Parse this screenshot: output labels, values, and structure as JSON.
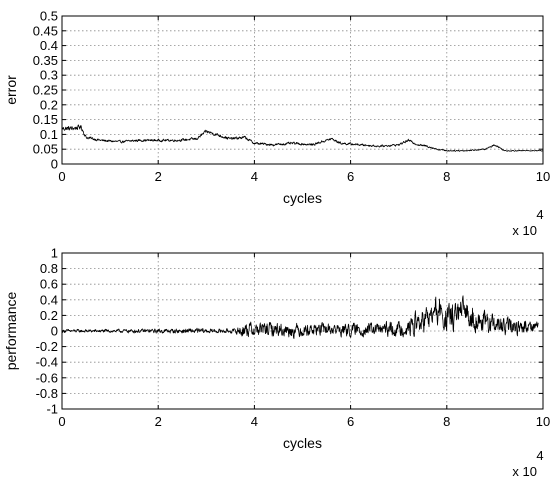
{
  "chart_data": [
    {
      "type": "line",
      "xlabel": "cycles",
      "ylabel": "error",
      "xlim": [
        0,
        100000
      ],
      "ylim": [
        0,
        0.5
      ],
      "x_tick_values": [
        0,
        20000,
        40000,
        60000,
        80000,
        100000
      ],
      "x_tick_labels": [
        "0",
        "2",
        "4",
        "6",
        "8",
        "10"
      ],
      "x_multiplier_base": "x 10",
      "x_multiplier_exponent": "4",
      "y_tick_values": [
        0,
        0.05,
        0.1,
        0.15,
        0.2,
        0.25,
        0.3,
        0.35,
        0.4,
        0.45,
        0.5
      ],
      "y_tick_labels": [
        "0",
        "0.05",
        "0.1",
        "0.15",
        "0.2",
        "0.25",
        "0.3",
        "0.35",
        "0.4",
        "0.45",
        "0.5"
      ],
      "grid": true,
      "colors": {
        "series": "#000000",
        "grid": "#8c8c8c",
        "frame": "#000000"
      },
      "series": [
        {
          "x": [
            0,
            2000,
            4000,
            5000,
            8000,
            12000,
            16000,
            20000,
            24000,
            28000,
            30000,
            32000,
            35000,
            38000,
            40000,
            44000,
            48000,
            52000,
            54000,
            56000,
            58000,
            62000,
            66000,
            70000,
            72000,
            74000,
            76000,
            78000,
            80000,
            84000,
            88000,
            90000,
            92000,
            96000,
            100000
          ],
          "y": [
            0.12,
            0.12,
            0.125,
            0.09,
            0.08,
            0.075,
            0.08,
            0.08,
            0.08,
            0.085,
            0.11,
            0.1,
            0.085,
            0.09,
            0.07,
            0.065,
            0.07,
            0.065,
            0.075,
            0.085,
            0.07,
            0.065,
            0.06,
            0.065,
            0.08,
            0.065,
            0.06,
            0.05,
            0.045,
            0.045,
            0.05,
            0.065,
            0.045,
            0.045,
            0.045
          ],
          "noise": [
            0.012,
            0.012,
            0.012,
            0.008,
            0.006,
            0.006,
            0.006,
            0.006,
            0.006,
            0.007,
            0.008,
            0.008,
            0.007,
            0.007,
            0.006,
            0.006,
            0.006,
            0.006,
            0.006,
            0.007,
            0.006,
            0.005,
            0.005,
            0.005,
            0.006,
            0.005,
            0.005,
            0.004,
            0.003,
            0.003,
            0.003,
            0.005,
            0.003,
            0.002,
            0.002
          ]
        }
      ]
    },
    {
      "type": "line",
      "xlabel": "cycles",
      "ylabel": "performance",
      "xlim": [
        0,
        100000
      ],
      "ylim": [
        -1,
        1
      ],
      "x_tick_values": [
        0,
        20000,
        40000,
        60000,
        80000,
        100000
      ],
      "x_tick_labels": [
        "0",
        "2",
        "4",
        "6",
        "8",
        "10"
      ],
      "x_multiplier_base": "x 10",
      "x_multiplier_exponent": "4",
      "y_tick_values": [
        -1,
        -0.8,
        -0.6,
        -0.4,
        -0.2,
        0,
        0.2,
        0.4,
        0.6,
        0.8,
        1
      ],
      "y_tick_labels": [
        "-1",
        "-0.8",
        "-0.6",
        "-0.4",
        "-0.2",
        "0",
        "0.2",
        "0.4",
        "0.6",
        "0.8",
        "1"
      ],
      "grid": true,
      "colors": {
        "series": "#000000",
        "grid": "#8c8c8c",
        "frame": "#000000"
      },
      "series": [
        {
          "x": [
            0,
            10000,
            20000,
            29000,
            31000,
            36000,
            37000,
            38000,
            40000,
            44000,
            48000,
            52000,
            56000,
            60000,
            64000,
            68000,
            72000,
            73000,
            75000,
            77000,
            78000,
            80000,
            82000,
            84000,
            86000,
            88000,
            90000,
            92000,
            94000,
            96000,
            99000
          ],
          "y": [
            0,
            0,
            0,
            0,
            0,
            0,
            0,
            0.02,
            0.02,
            0.02,
            0.01,
            0.02,
            0.02,
            0.01,
            0.02,
            0.02,
            0.03,
            0.08,
            0.12,
            0.2,
            0.25,
            0.15,
            0.2,
            0.25,
            0.15,
            0.1,
            0.08,
            0.05,
            0.05,
            0.05,
            0.08
          ],
          "noise": [
            0.03,
            0.03,
            0.04,
            0.05,
            0.04,
            0.04,
            0.12,
            0.14,
            0.14,
            0.13,
            0.13,
            0.12,
            0.12,
            0.12,
            0.12,
            0.13,
            0.14,
            0.22,
            0.22,
            0.24,
            0.3,
            0.26,
            0.28,
            0.24,
            0.22,
            0.2,
            0.18,
            0.18,
            0.15,
            0.12,
            0.1
          ]
        }
      ]
    }
  ]
}
